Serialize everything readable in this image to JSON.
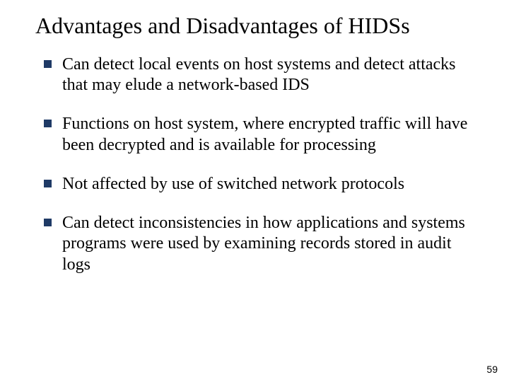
{
  "slide": {
    "title": "Advantages and Disadvantages of HIDSs",
    "title_fontsize": 32,
    "body_fontsize": 24,
    "bullet_color": "#1f3a66",
    "background_color": "#ffffff",
    "text_color": "#000000",
    "font_family": "Times New Roman",
    "bullets": [
      "Can detect local events on host systems and detect attacks that may elude a network-based IDS",
      "Functions on host system, where encrypted traffic will have been decrypted and is available for processing",
      "Not affected by use of switched network protocols",
      "Can detect inconsistencies in how applications and systems programs were used by examining records stored in audit logs"
    ],
    "page_number": "59"
  }
}
